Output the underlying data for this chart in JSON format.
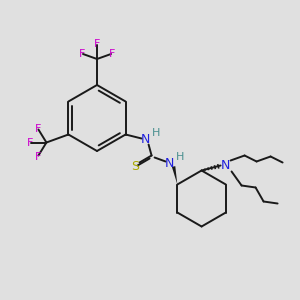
{
  "bg_color": "#e0e0e0",
  "bond_color": "#1a1a1a",
  "N_color": "#2020dd",
  "S_color": "#aaaa00",
  "F_color": "#cc00cc",
  "H_color": "#4a9090",
  "figsize": [
    3.0,
    3.0
  ],
  "dpi": 100,
  "xlim": [
    0,
    300
  ],
  "ylim": [
    0,
    300
  ]
}
